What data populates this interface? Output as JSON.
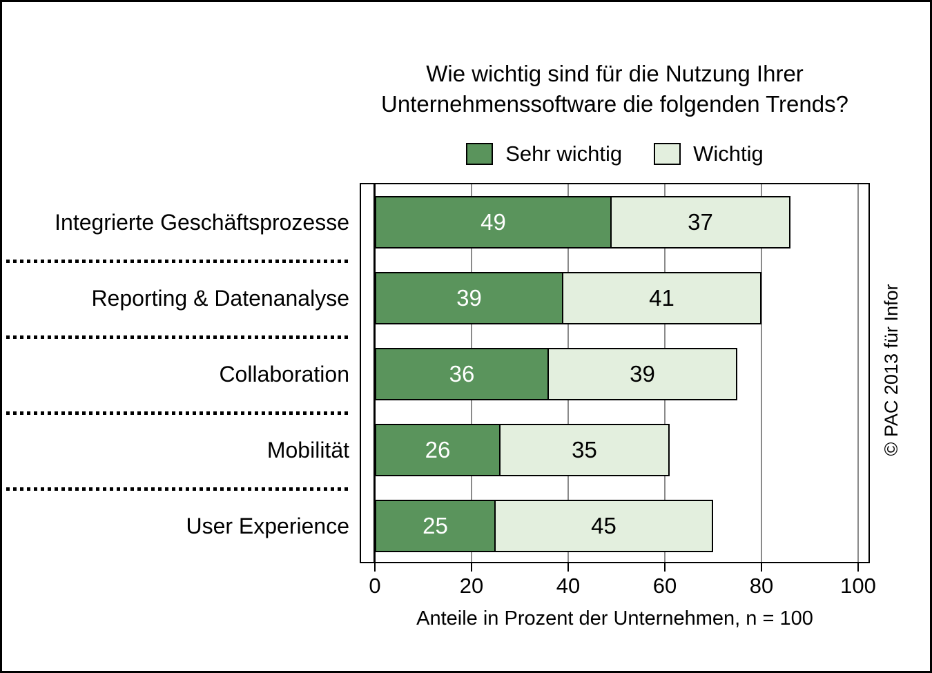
{
  "title": {
    "line1": "Wie wichtig sind für die Nutzung Ihrer",
    "line2": "Unternehmenssoftware die folgenden Trends?"
  },
  "footer": {
    "copyright": "© PAC 2013 für Infor"
  },
  "chart_data": {
    "type": "bar",
    "orientation": "horizontal",
    "stacked": true,
    "title": "Wie wichtig sind für die Nutzung Ihrer Unternehmenssoftware die folgenden Trends?",
    "categories": [
      "Integrierte Geschäftsprozesse",
      "Reporting & Datenanalyse",
      "Collaboration",
      "Mobilität",
      "User Experience"
    ],
    "series": [
      {
        "name": "Sehr wichtig",
        "values": [
          49,
          39,
          36,
          26,
          25
        ],
        "color": "#5a945c",
        "label_color": "#ffffff"
      },
      {
        "name": "Wichtig",
        "values": [
          37,
          41,
          39,
          35,
          45
        ],
        "color": "#e3efde",
        "label_color": "#000000"
      }
    ],
    "xlabel": "Anteile in Prozent der Unternehmen, n = 100",
    "xlim": [
      0,
      100
    ],
    "xticks": [
      0,
      20,
      40,
      60,
      80,
      100
    ],
    "grid": true,
    "grid_color": "#8a8a8a",
    "bar_border_color": "#000000",
    "legend_position": "top"
  }
}
